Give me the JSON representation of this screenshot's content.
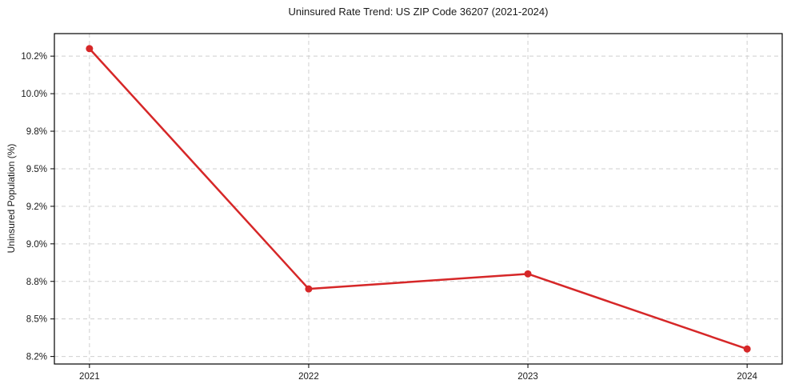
{
  "chart_data": {
    "type": "line",
    "title": "Uninsured Rate Trend: US ZIP Code 36207 (2021-2024)",
    "ylabel": "Uninsured Population (%)",
    "xlabel": "",
    "x": [
      2021,
      2022,
      2023,
      2024
    ],
    "xtick_labels": [
      "2021",
      "2022",
      "2023",
      "2024"
    ],
    "series": [
      {
        "name": "Uninsured rate",
        "values": [
          10.3,
          8.7,
          8.8,
          8.3
        ]
      }
    ],
    "xlim": [
      2020.84,
      2024.16
    ],
    "ylim": [
      8.2,
      10.4
    ],
    "ytick_values": [
      8.25,
      8.5,
      8.75,
      9.0,
      9.25,
      9.5,
      9.75,
      10.0,
      10.25
    ],
    "ytick_labels": [
      "8.2%",
      "8.5%",
      "8.8%",
      "9.0%",
      "9.2%",
      "9.5%",
      "9.8%",
      "10.0%",
      "10.2%"
    ],
    "grid": true,
    "grid_style": "dashed",
    "legend": "none",
    "line_color": "#d62728",
    "marker": "o",
    "grid_color": "#cfcfcf",
    "spine_color": "#000000",
    "text_color": "#1a1a1a",
    "background": "#ffffff"
  }
}
